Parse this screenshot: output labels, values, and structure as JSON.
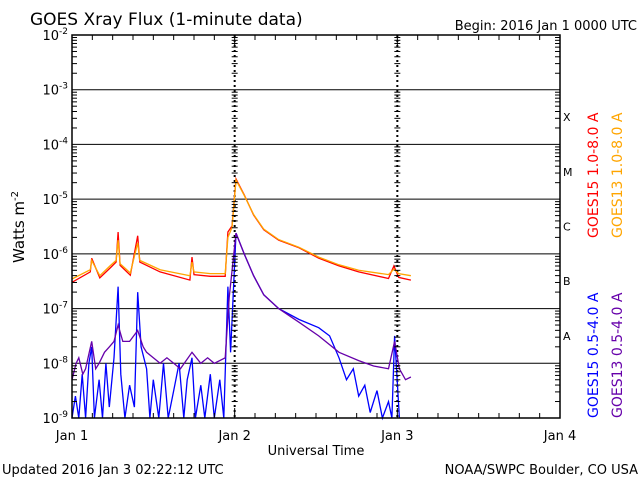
{
  "chart_data": {
    "type": "line",
    "title": "GOES Xray Flux (1-minute data)",
    "begin_label": "Begin:  2016 Jan 1 0000 UTC",
    "xlabel": "Universal Time",
    "ylabel": "Watts m",
    "ylabel_sup": "-2",
    "x_unit": "hours since 2016 Jan 1 0000 UTC",
    "xlim": [
      0,
      72
    ],
    "ylim_log10": [
      -9,
      -2
    ],
    "y_scale": "log",
    "x_ticks": [
      {
        "value": 0,
        "label": "Jan 1"
      },
      {
        "value": 24,
        "label": "Jan 2"
      },
      {
        "value": 48,
        "label": "Jan 3"
      },
      {
        "value": 72,
        "label": "Jan 4"
      }
    ],
    "y_ticks": [
      {
        "exp": -2,
        "label": "-2"
      },
      {
        "exp": -3,
        "label": "-3"
      },
      {
        "exp": -4,
        "label": "-4"
      },
      {
        "exp": -5,
        "label": "-5"
      },
      {
        "exp": -6,
        "label": "-6"
      },
      {
        "exp": -7,
        "label": "-7"
      },
      {
        "exp": -8,
        "label": "-8"
      },
      {
        "exp": -9,
        "label": "-9"
      }
    ],
    "flare_classes": [
      {
        "label": "X",
        "exp": -4
      },
      {
        "label": "M",
        "exp": -5
      },
      {
        "label": "C",
        "exp": -6
      },
      {
        "label": "B",
        "exp": -7
      },
      {
        "label": "A",
        "exp": -8
      }
    ],
    "grid": "horizontal lines at each decade; dotted day separators",
    "legend_position": "right",
    "series": [
      {
        "name": "GOES15 1.0-8.0 A",
        "color": "#ff0000",
        "points": [
          [
            0,
            -6.52
          ],
          [
            2.7,
            -6.33
          ],
          [
            2.9,
            -6.08
          ],
          [
            4.1,
            -6.44
          ],
          [
            5.6,
            -6.26
          ],
          [
            6.5,
            -6.15
          ],
          [
            6.8,
            -5.6
          ],
          [
            7.1,
            -6.21
          ],
          [
            8.6,
            -6.39
          ],
          [
            9.7,
            -5.67
          ],
          [
            10.0,
            -6.15
          ],
          [
            13.0,
            -6.33
          ],
          [
            17.4,
            -6.48
          ],
          [
            17.7,
            -6.06
          ],
          [
            18.0,
            -6.38
          ],
          [
            20.4,
            -6.41
          ],
          [
            22.6,
            -6.41
          ],
          [
            23.0,
            -5.6
          ],
          [
            23.6,
            -5.49
          ],
          [
            24.2,
            -4.63
          ],
          [
            25.4,
            -4.92
          ],
          [
            26.8,
            -5.29
          ],
          [
            28.3,
            -5.56
          ],
          [
            30.5,
            -5.75
          ],
          [
            33.5,
            -5.89
          ],
          [
            36.4,
            -6.08
          ],
          [
            39.4,
            -6.22
          ],
          [
            42.3,
            -6.33
          ],
          [
            46.7,
            -6.45
          ],
          [
            47.5,
            -6.22
          ],
          [
            48.2,
            -6.43
          ],
          [
            50.0,
            -6.48
          ]
        ]
      },
      {
        "name": "GOES13 1.0-8.0 A",
        "color": "#ffa500",
        "points": [
          [
            0,
            -6.46
          ],
          [
            2.7,
            -6.29
          ],
          [
            2.9,
            -6.12
          ],
          [
            4.1,
            -6.4
          ],
          [
            5.6,
            -6.22
          ],
          [
            6.5,
            -6.12
          ],
          [
            6.8,
            -5.75
          ],
          [
            7.1,
            -6.18
          ],
          [
            8.6,
            -6.35
          ],
          [
            9.7,
            -5.8
          ],
          [
            10.0,
            -6.12
          ],
          [
            13.0,
            -6.29
          ],
          [
            17.4,
            -6.4
          ],
          [
            17.7,
            -6.15
          ],
          [
            18.0,
            -6.33
          ],
          [
            20.4,
            -6.36
          ],
          [
            22.6,
            -6.36
          ],
          [
            23.0,
            -5.7
          ],
          [
            23.6,
            -5.52
          ],
          [
            24.2,
            -4.65
          ],
          [
            25.4,
            -4.93
          ],
          [
            26.8,
            -5.28
          ],
          [
            28.3,
            -5.55
          ],
          [
            30.5,
            -5.74
          ],
          [
            33.5,
            -5.88
          ],
          [
            36.4,
            -6.06
          ],
          [
            39.4,
            -6.2
          ],
          [
            42.3,
            -6.3
          ],
          [
            46.7,
            -6.38
          ],
          [
            47.5,
            -6.28
          ],
          [
            48.2,
            -6.36
          ],
          [
            50.0,
            -6.4
          ]
        ]
      },
      {
        "name": "GOES15 0.5-4.0 A",
        "color": "#0000ff",
        "points": [
          [
            0,
            -9
          ],
          [
            0.5,
            -8.6
          ],
          [
            1,
            -9
          ],
          [
            1.5,
            -8.2
          ],
          [
            2,
            -9
          ],
          [
            2.5,
            -8.0
          ],
          [
            2.9,
            -7.7
          ],
          [
            3.3,
            -9
          ],
          [
            4,
            -8.3
          ],
          [
            4.5,
            -9
          ],
          [
            5,
            -8.0
          ],
          [
            5.5,
            -8.8
          ],
          [
            6.2,
            -7.9
          ],
          [
            6.8,
            -6.6
          ],
          [
            7.2,
            -8.2
          ],
          [
            7.8,
            -9
          ],
          [
            8.5,
            -8.4
          ],
          [
            9.2,
            -8.8
          ],
          [
            9.7,
            -6.7
          ],
          [
            10.2,
            -7.7
          ],
          [
            11,
            -8.1
          ],
          [
            11.5,
            -9
          ],
          [
            12,
            -8.3
          ],
          [
            12.8,
            -9
          ],
          [
            13.5,
            -8.0
          ],
          [
            14.2,
            -9
          ],
          [
            15,
            -8.5
          ],
          [
            15.8,
            -8.0
          ],
          [
            16.5,
            -9
          ],
          [
            17,
            -8.3
          ],
          [
            17.7,
            -7.9
          ],
          [
            18.2,
            -9
          ],
          [
            19,
            -8.4
          ],
          [
            19.6,
            -9
          ],
          [
            20.4,
            -8.2
          ],
          [
            21,
            -9
          ],
          [
            21.8,
            -8.3
          ],
          [
            22.4,
            -9
          ],
          [
            23.0,
            -6.6
          ],
          [
            23.4,
            -7.8
          ],
          [
            24.2,
            -5.62
          ],
          [
            25.4,
            -6.0
          ],
          [
            26.8,
            -6.4
          ],
          [
            28.3,
            -6.75
          ],
          [
            30.5,
            -7.0
          ],
          [
            33.5,
            -7.2
          ],
          [
            36.4,
            -7.35
          ],
          [
            38.0,
            -7.5
          ],
          [
            39.4,
            -7.9
          ],
          [
            40.5,
            -8.3
          ],
          [
            41.5,
            -8.1
          ],
          [
            42.3,
            -8.6
          ],
          [
            43.2,
            -8.4
          ],
          [
            44,
            -8.9
          ],
          [
            45,
            -8.5
          ],
          [
            45.8,
            -9
          ],
          [
            46.7,
            -8.7
          ],
          [
            47.2,
            -9
          ],
          [
            47.6,
            -7.5
          ],
          [
            48.3,
            -9
          ]
        ]
      },
      {
        "name": "GOES13 0.5-4.0 A",
        "color": "#6600aa",
        "points": [
          [
            0,
            -8.3
          ],
          [
            0.6,
            -8.0
          ],
          [
            1,
            -7.9
          ],
          [
            1.6,
            -8.2
          ],
          [
            2,
            -8.1
          ],
          [
            2.9,
            -7.6
          ],
          [
            3.5,
            -8.1
          ],
          [
            4,
            -8.0
          ],
          [
            4.8,
            -7.8
          ],
          [
            5.5,
            -7.7
          ],
          [
            6.2,
            -7.6
          ],
          [
            6.8,
            -7.3
          ],
          [
            7.5,
            -7.6
          ],
          [
            8.5,
            -7.6
          ],
          [
            9.7,
            -7.4
          ],
          [
            10.5,
            -7.7
          ],
          [
            11,
            -7.8
          ],
          [
            12,
            -7.9
          ],
          [
            13,
            -8.0
          ],
          [
            14,
            -7.9
          ],
          [
            15,
            -8.0
          ],
          [
            16,
            -8.1
          ],
          [
            17.7,
            -7.8
          ],
          [
            19,
            -8.0
          ],
          [
            20,
            -7.9
          ],
          [
            21,
            -8.0
          ],
          [
            22.6,
            -7.9
          ],
          [
            23.2,
            -6.8
          ],
          [
            24.2,
            -5.62
          ],
          [
            25.4,
            -6.0
          ],
          [
            26.8,
            -6.4
          ],
          [
            28.3,
            -6.75
          ],
          [
            30.5,
            -7.0
          ],
          [
            33.5,
            -7.25
          ],
          [
            36.4,
            -7.5
          ],
          [
            39.4,
            -7.8
          ],
          [
            42.3,
            -7.95
          ],
          [
            44.5,
            -8.05
          ],
          [
            46.7,
            -8.1
          ],
          [
            47.6,
            -7.6
          ],
          [
            48.3,
            -8.1
          ],
          [
            49.2,
            -8.3
          ],
          [
            50,
            -8.25
          ]
        ]
      }
    ]
  },
  "footer": {
    "updated": "Updated 2016 Jan  3 02:22:12 UTC",
    "credit": "NOAA/SWPC Boulder, CO USA"
  }
}
